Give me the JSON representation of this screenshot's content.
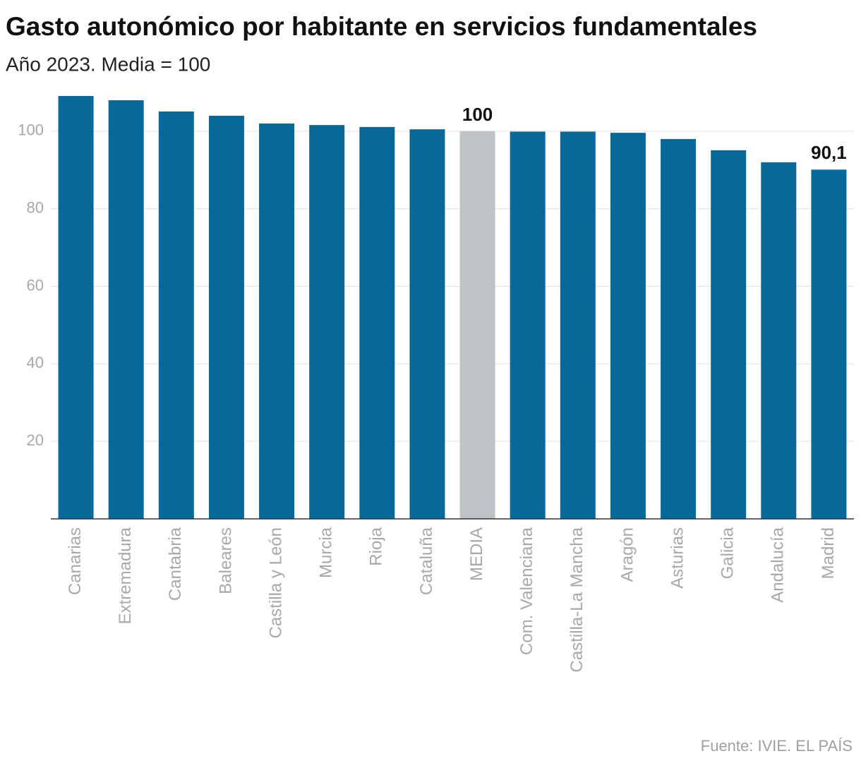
{
  "chart_data": {
    "type": "bar",
    "title": "Gasto autonómico por habitante en servicios fundamentales",
    "subtitle": "Año 2023. Media = 100",
    "source": "Fuente: IVIE. EL PAÍS",
    "categories": [
      "Canarias",
      "Extremadura",
      "Cantabria",
      "Baleares",
      "Castilla y León",
      "Murcia",
      "Rioja",
      "Cataluña",
      "MEDIA",
      "Com. Valenciana",
      "Castilla-La Mancha",
      "Aragón",
      "Asturias",
      "Galicia",
      "Andalucía",
      "Madrid"
    ],
    "values": [
      109.1,
      108.0,
      105.1,
      104.0,
      102.0,
      101.6,
      101.1,
      100.5,
      100,
      99.9,
      99.9,
      99.6,
      98.0,
      95.1,
      92.0,
      90.1
    ],
    "value_labels": [
      null,
      null,
      null,
      null,
      null,
      null,
      null,
      null,
      "100",
      null,
      null,
      null,
      null,
      null,
      null,
      "90,1"
    ],
    "colors": [
      "#06699a",
      "#06699a",
      "#06699a",
      "#06699a",
      "#06699a",
      "#06699a",
      "#06699a",
      "#06699a",
      "#bec3c6",
      "#06699a",
      "#06699a",
      "#06699a",
      "#06699a",
      "#06699a",
      "#06699a",
      "#06699a"
    ],
    "ylim": [
      0,
      110
    ],
    "yticks": [
      20,
      40,
      60,
      80,
      100
    ],
    "grid": true
  }
}
